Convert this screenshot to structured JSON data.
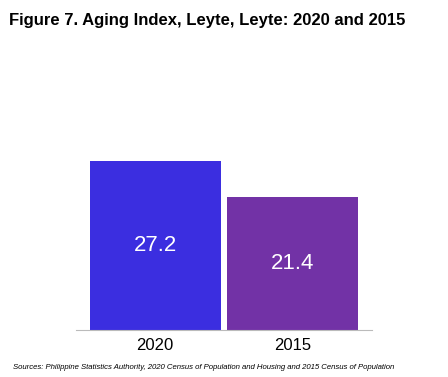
{
  "chart_data": {
    "type": "bar",
    "title": "Figure 7. Aging Index, Leyte, Leyte: 2020 and 2015",
    "categories": [
      "2020",
      "2015"
    ],
    "values": [
      27.2,
      21.4
    ],
    "colors": [
      "#3b2ee0",
      "#7232a6"
    ],
    "data_labels": true,
    "tick_labels": "x",
    "annotations": [
      "Sources: Philippine Statistics Authority, 2020 Census of Population and Housing and 2015 Census of Population"
    ]
  }
}
